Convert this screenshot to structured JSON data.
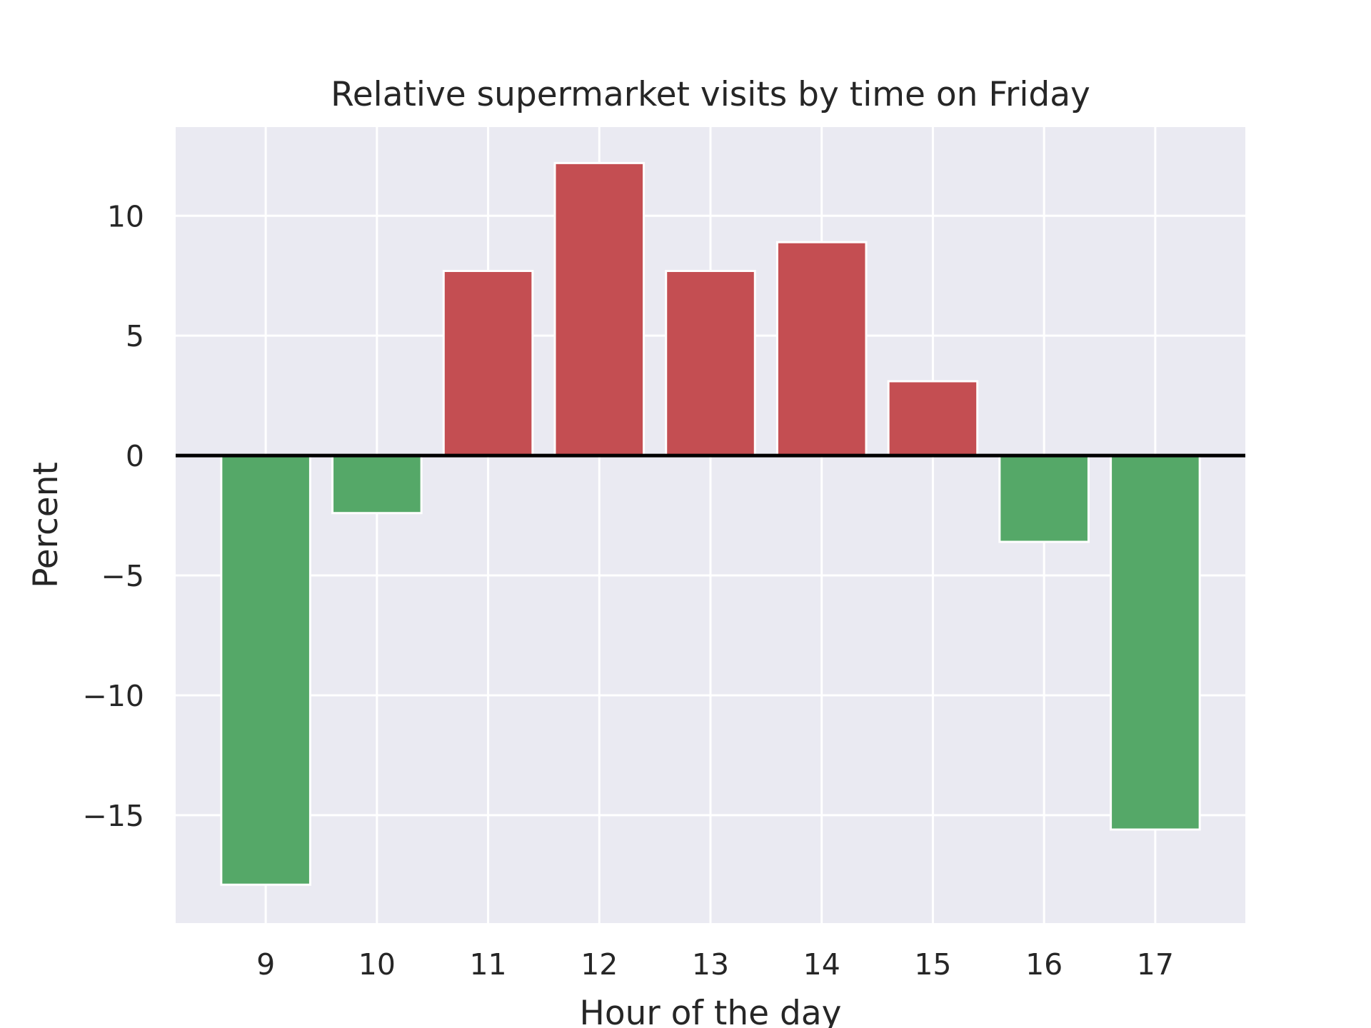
{
  "chart_data": {
    "type": "bar",
    "title": "Relative supermarket visits by time on Friday",
    "xlabel": "Hour of the day",
    "ylabel": "Percent",
    "categories": [
      "9",
      "10",
      "11",
      "12",
      "13",
      "14",
      "15",
      "16",
      "17"
    ],
    "values": [
      -17.9,
      -2.4,
      7.7,
      12.2,
      7.7,
      8.9,
      3.1,
      -3.6,
      -15.6
    ],
    "ylim": [
      -19.5,
      13.7
    ],
    "yticks": [
      -15,
      -10,
      -5,
      0,
      5,
      10
    ],
    "ytick_labels": [
      "−15",
      "−10",
      "−5",
      "0",
      "5",
      "10"
    ],
    "grid": true,
    "zero_line": true,
    "colors": {
      "positive": "#c44e52",
      "negative": "#55a868",
      "plot_background": "#eaeaf2",
      "grid": "#ffffff",
      "zero_line": "#000000",
      "text": "#262626"
    }
  }
}
